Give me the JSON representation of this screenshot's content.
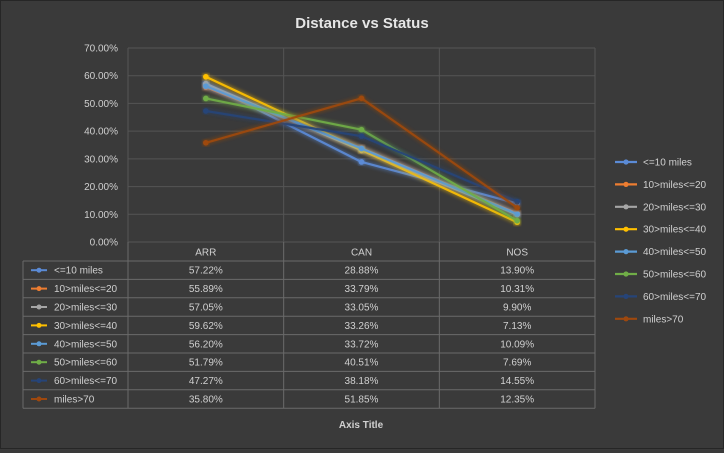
{
  "chart_data": {
    "type": "line",
    "title": "Distance vs Status",
    "xlabel": "Axis Title",
    "ylabel": "",
    "categories": [
      "ARR",
      "CAN",
      "NOS"
    ],
    "ylim": [
      0,
      70
    ],
    "yticks": [
      "0.00%",
      "10.00%",
      "20.00%",
      "30.00%",
      "40.00%",
      "50.00%",
      "60.00%",
      "70.00%"
    ],
    "grid": true,
    "legend_position": "right",
    "data_table": true,
    "series": [
      {
        "name": "<=10 miles",
        "color": "#5b8bd6",
        "values": [
          57.22,
          28.88,
          13.9
        ],
        "labels": [
          "57.22%",
          "28.88%",
          "13.90%"
        ]
      },
      {
        "name": "10>miles<=20",
        "color": "#ed7d31",
        "values": [
          55.89,
          33.79,
          10.31
        ],
        "labels": [
          "55.89%",
          "33.79%",
          "10.31%"
        ]
      },
      {
        "name": "20>miles<=30",
        "color": "#a5a5a5",
        "values": [
          57.05,
          33.05,
          9.9
        ],
        "labels": [
          "57.05%",
          "33.05%",
          "9.90%"
        ]
      },
      {
        "name": "30>miles<=40",
        "color": "#ffc000",
        "values": [
          59.62,
          33.26,
          7.13
        ],
        "labels": [
          "59.62%",
          "33.26%",
          "7.13%"
        ]
      },
      {
        "name": "40>miles<=50",
        "color": "#5b9bd5",
        "values": [
          56.2,
          33.72,
          10.09
        ],
        "labels": [
          "56.20%",
          "33.72%",
          "10.09%"
        ]
      },
      {
        "name": "50>miles<=60",
        "color": "#70ad47",
        "values": [
          51.79,
          40.51,
          7.69
        ],
        "labels": [
          "51.79%",
          "40.51%",
          "7.69%"
        ]
      },
      {
        "name": "60>miles<=70",
        "color": "#264478",
        "values": [
          47.27,
          38.18,
          14.55
        ],
        "labels": [
          "47.27%",
          "38.18%",
          "14.55%"
        ]
      },
      {
        "name": "miles>70",
        "color": "#9e480e",
        "values": [
          35.8,
          51.85,
          12.35
        ],
        "labels": [
          "35.80%",
          "51.85%",
          "12.35%"
        ]
      }
    ]
  }
}
